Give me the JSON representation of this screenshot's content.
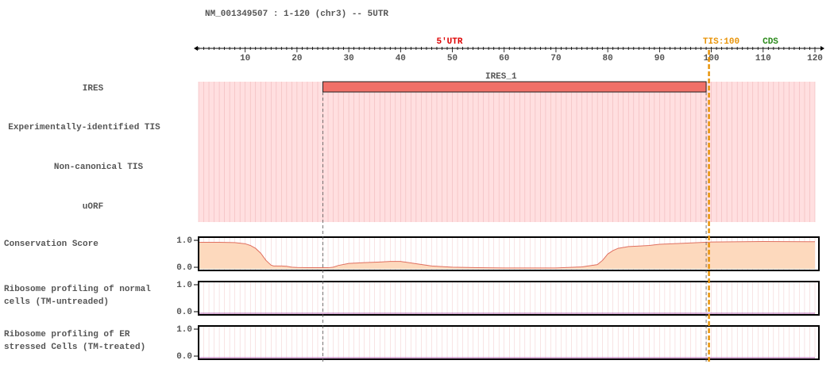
{
  "header": {
    "transcript_title": "NM_001349507 : 1-120 (chr3) -- 5UTR"
  },
  "regions": {
    "utr_label": "5'UTR",
    "tis_label": "TIS:100",
    "cds_label": "CDS",
    "utr_color": "#dd0000",
    "tis_color": "#e8940a",
    "cds_color": "#2a8a1a"
  },
  "axis": {
    "min": 1,
    "max": 120,
    "tick_labels": [
      "10",
      "20",
      "30",
      "40",
      "50",
      "60",
      "70",
      "80",
      "90",
      "100",
      "110",
      "120"
    ]
  },
  "tracks": [
    {
      "id": "ires",
      "label": "IRES"
    },
    {
      "id": "exp-tis",
      "label": "Experimentally-identified TIS"
    },
    {
      "id": "noncanonical-tis",
      "label": "Non-canonical TIS"
    },
    {
      "id": "uorf",
      "label": "uORF"
    }
  ],
  "features": {
    "ires": [
      {
        "name": "IRES_1",
        "start": 25,
        "end": 99,
        "color": "#f07068"
      }
    ]
  },
  "tis_position": 100,
  "colors": {
    "track_background": "#ffdfe0",
    "conservation_fill": "#fdd9bd",
    "conservation_line": "#e07060",
    "ribo_line": "#b060b0"
  },
  "chart_data": [
    {
      "type": "area",
      "label": "Conservation Score",
      "ylim": [
        0.0,
        1.0
      ],
      "y_tick_labels": [
        "1.0",
        "0.0"
      ],
      "x": [
        1,
        5,
        8,
        10,
        11,
        12,
        13,
        14,
        15,
        15.5,
        16,
        17,
        18,
        19,
        20,
        22,
        24,
        25,
        26,
        27,
        28,
        30,
        33,
        36,
        38,
        40,
        43,
        46,
        50,
        55,
        60,
        65,
        70,
        75,
        78,
        79,
        80,
        81,
        82,
        84,
        86,
        88,
        90,
        95,
        100,
        110,
        120
      ],
      "values": [
        0.93,
        0.93,
        0.92,
        0.88,
        0.82,
        0.72,
        0.55,
        0.3,
        0.13,
        0.1,
        0.1,
        0.1,
        0.09,
        0.06,
        0.05,
        0.04,
        0.04,
        0.04,
        0.04,
        0.06,
        0.12,
        0.19,
        0.22,
        0.24,
        0.26,
        0.26,
        0.18,
        0.1,
        0.06,
        0.04,
        0.03,
        0.03,
        0.03,
        0.07,
        0.15,
        0.3,
        0.52,
        0.64,
        0.72,
        0.78,
        0.8,
        0.82,
        0.86,
        0.9,
        0.94,
        0.96,
        0.95
      ]
    },
    {
      "type": "line",
      "label": "Ribosome profiling of normal cells (TM-untreaded)",
      "ylim": [
        0.0,
        1.0
      ],
      "y_tick_labels": [
        "1.0",
        "0.0"
      ],
      "x": [
        1,
        120
      ],
      "values": [
        0.0,
        0.0
      ]
    },
    {
      "type": "line",
      "label": "Ribosome profiling of ER stressed Cells (TM-treated)",
      "ylim": [
        0.0,
        1.0
      ],
      "y_tick_labels": [
        "1.0",
        "0.0"
      ],
      "x": [
        1,
        120
      ],
      "values": [
        0.0,
        0.0
      ]
    }
  ]
}
